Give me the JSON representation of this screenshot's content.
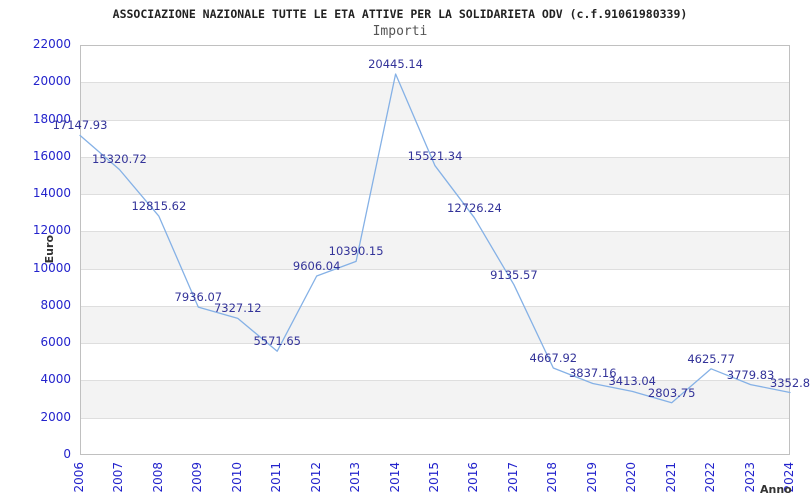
{
  "chart_data": {
    "type": "line",
    "title": "ASSOCIAZIONE NAZIONALE TUTTE LE ETA ATTIVE PER LA SOLIDARIETA ODV (c.f.91061980339)",
    "subtitle": "Importi",
    "xlabel": "Anno",
    "ylabel": "Euro",
    "categories": [
      "2006",
      "2007",
      "2008",
      "2009",
      "2010",
      "2011",
      "2012",
      "2013",
      "2014",
      "2015",
      "2016",
      "2017",
      "2018",
      "2019",
      "2020",
      "2021",
      "2022",
      "2023",
      "2024"
    ],
    "series": [
      {
        "name": "Importi",
        "values": [
          17147.93,
          15320.72,
          12815.62,
          7936.07,
          7327.12,
          5571.65,
          9606.04,
          10390.15,
          20445.14,
          15521.34,
          12726.24,
          9135.57,
          4667.92,
          3837.16,
          3413.04,
          2803.75,
          4625.77,
          3779.83,
          3352.8
        ]
      }
    ],
    "point_labels": [
      "17147.93",
      "15320.72",
      "12815.62",
      "7936.07",
      "7327.12",
      "5571.65",
      "9606.04",
      "10390.15",
      "20445.14",
      "15521.34",
      "12726.24",
      "9135.57",
      "4667.92",
      "3837.16",
      "3413.04",
      "2803.75",
      "4625.77",
      "3779.83",
      "3352.8"
    ],
    "ylim": [
      0,
      22000
    ],
    "yticks": [
      0,
      2000,
      4000,
      6000,
      8000,
      10000,
      12000,
      14000,
      16000,
      18000,
      20000,
      22000
    ],
    "grid": "horizontal-bands-alternating",
    "legend": "none",
    "colors": {
      "line": "#85b1e6",
      "tick_labels": "#2323cc",
      "point_labels": "#333399",
      "band_fill": "#f3f3f3",
      "gridline": "#dedede",
      "plot_border": "#c0c0c0",
      "title": "#222222",
      "subtitle": "#555555",
      "axis_titles": "#333333"
    }
  }
}
